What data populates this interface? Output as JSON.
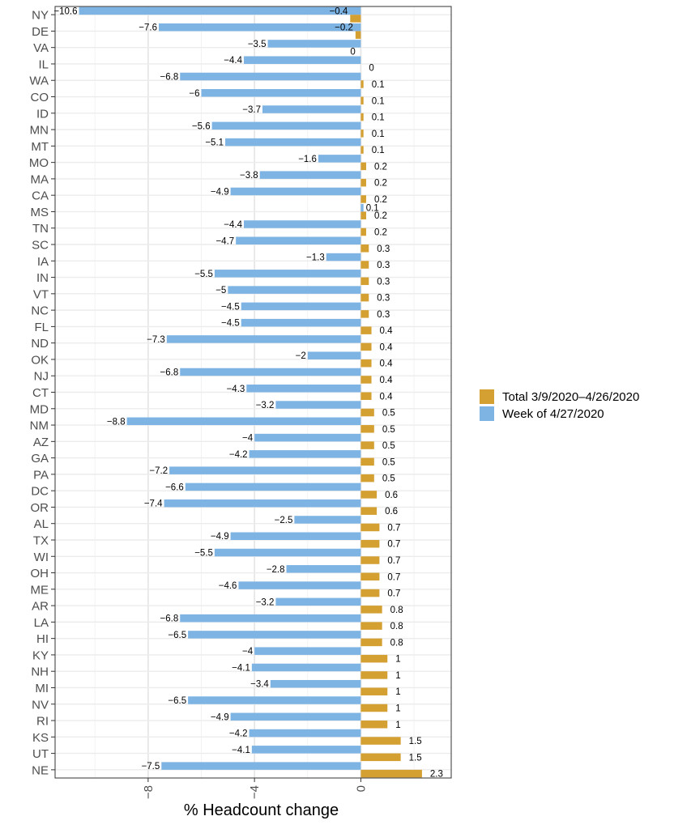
{
  "chart_data": {
    "type": "bar",
    "orientation": "horizontal",
    "title": "",
    "xlabel": "% Headcount change",
    "ylabel": "",
    "xlim": [
      -11.5,
      3.4
    ],
    "xticks": [
      -8,
      -4,
      0
    ],
    "xtick_labels": [
      "−8",
      "−4",
      "0"
    ],
    "grid": true,
    "legend_position": "right",
    "categories": [
      "NY",
      "DE",
      "VA",
      "IL",
      "WA",
      "CO",
      "ID",
      "MN",
      "MT",
      "MO",
      "MA",
      "CA",
      "MS",
      "TN",
      "SC",
      "IA",
      "IN",
      "VT",
      "NC",
      "FL",
      "ND",
      "OK",
      "NJ",
      "CT",
      "MD",
      "NM",
      "AZ",
      "GA",
      "PA",
      "DC",
      "OR",
      "AL",
      "TX",
      "WI",
      "OH",
      "ME",
      "AR",
      "LA",
      "HI",
      "KY",
      "NH",
      "MI",
      "NV",
      "RI",
      "KS",
      "UT",
      "NE"
    ],
    "series": [
      {
        "name": "Total 3/9/2020–4/26/2020",
        "color": "#d4a032",
        "values": [
          -0.4,
          -0.2,
          0,
          0,
          0.1,
          0.1,
          0.1,
          0.1,
          0.1,
          0.2,
          0.2,
          0.2,
          0.2,
          0.2,
          0.3,
          0.3,
          0.3,
          0.3,
          0.3,
          0.4,
          0.4,
          0.4,
          0.4,
          0.4,
          0.5,
          0.5,
          0.5,
          0.5,
          0.5,
          0.6,
          0.6,
          0.7,
          0.7,
          0.7,
          0.7,
          0.7,
          0.8,
          0.8,
          0.8,
          1,
          1,
          1,
          1,
          1,
          1.5,
          1.5,
          2.3
        ],
        "labels": [
          "−0.4",
          "−0.2",
          "0",
          "0",
          "0.1",
          "0.1",
          "0.1",
          "0.1",
          "0.1",
          "0.2",
          "0.2",
          "0.2",
          "0.2",
          "0.2",
          "0.3",
          "0.3",
          "0.3",
          "0.3",
          "0.3",
          "0.4",
          "0.4",
          "0.4",
          "0.4",
          "0.4",
          "0.5",
          "0.5",
          "0.5",
          "0.5",
          "0.5",
          "0.6",
          "0.6",
          "0.7",
          "0.7",
          "0.7",
          "0.7",
          "0.7",
          "0.8",
          "0.8",
          "0.8",
          "1",
          "1",
          "1",
          "1",
          "1",
          "1.5",
          "1.5",
          "2.3"
        ]
      },
      {
        "name": "Week of 4/27/2020",
        "color": "#7eb4e4",
        "values": [
          -10.6,
          -7.6,
          -3.5,
          -4.4,
          -6.8,
          -6,
          -3.7,
          -5.6,
          -5.1,
          -1.6,
          -3.8,
          -4.9,
          0.1,
          -4.4,
          -4.7,
          -1.3,
          -5.5,
          -5,
          -4.5,
          -4.5,
          -7.3,
          -2,
          -6.8,
          -4.3,
          -3.2,
          -8.8,
          -4,
          -4.2,
          -7.2,
          -6.6,
          -7.4,
          -2.5,
          -4.9,
          -5.5,
          -2.8,
          -4.6,
          -3.2,
          -6.8,
          -6.5,
          -4,
          -4.1,
          -3.4,
          -6.5,
          -4.9,
          -4.2,
          -4.1,
          -7.5
        ],
        "labels": [
          "−10.6",
          "−7.6",
          "−3.5",
          "−4.4",
          "−6.8",
          "−6",
          "−3.7",
          "−5.6",
          "−5.1",
          "−1.6",
          "−3.8",
          "−4.9",
          "0.1",
          "−4.4",
          "−4.7",
          "−1.3",
          "−5.5",
          "−5",
          "−4.5",
          "−4.5",
          "−7.3",
          "−2",
          "−6.8",
          "−4.3",
          "−3.2",
          "−8.8",
          "−4",
          "−4.2",
          "−7.2",
          "−6.6",
          "−7.4",
          "−2.5",
          "−4.9",
          "−5.5",
          "−2.8",
          "−4.6",
          "−3.2",
          "−6.8",
          "−6.5",
          "−4",
          "−4.1",
          "−3.4",
          "−6.5",
          "−4.9",
          "−4.2",
          "−4.1",
          "−7.5"
        ]
      }
    ]
  },
  "legend": {
    "items": [
      {
        "label": "Total 3/9/2020–4/26/2020",
        "color": "#d4a032"
      },
      {
        "label": "Week of 4/27/2020",
        "color": "#7eb4e4"
      }
    ]
  }
}
